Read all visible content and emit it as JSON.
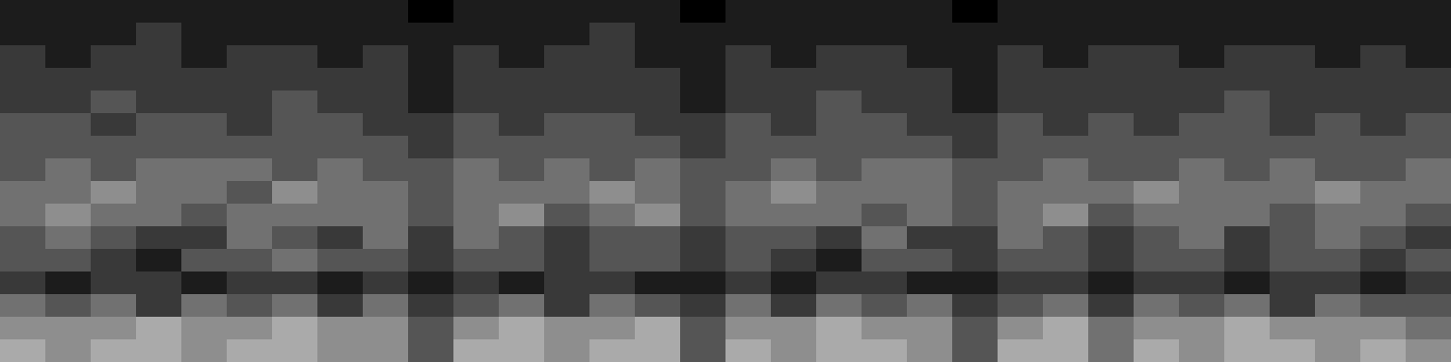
{
  "chart_data": {
    "type": "heatmap",
    "tick_labels": false,
    "colors": [
      "#000000",
      "#ffffff"
    ],
    "color_range": [
      0,
      9
    ],
    "cells": [
      [
        6,
        5,
        6,
        6,
        5,
        6,
        6,
        5,
        5,
        3,
        6,
        6,
        5,
        6,
        6,
        3,
        6,
        5,
        6,
        6,
        5,
        3,
        6,
        6,
        4,
        6,
        5,
        6,
        6,
        5,
        6,
        5
      ],
      [
        5,
        5,
        5,
        6,
        5,
        5,
        6,
        5,
        5,
        3,
        5,
        6,
        5,
        5,
        6,
        3,
        5,
        5,
        6,
        5,
        5,
        3,
        5,
        6,
        4,
        5,
        5,
        6,
        5,
        5,
        5,
        4
      ],
      [
        4,
        3,
        4,
        2,
        4,
        3,
        4,
        2,
        4,
        2,
        3,
        4,
        2,
        4,
        3,
        2,
        4,
        2,
        4,
        3,
        4,
        2,
        3,
        4,
        2,
        4,
        3,
        4,
        2,
        4,
        3,
        3
      ],
      [
        2,
        1,
        2,
        2,
        1,
        2,
        2,
        1,
        2,
        1,
        2,
        1,
        2,
        2,
        1,
        1,
        2,
        1,
        2,
        2,
        1,
        1,
        2,
        2,
        1,
        2,
        2,
        1,
        2,
        2,
        1,
        2
      ],
      [
        3,
        3,
        2,
        1,
        3,
        3,
        4,
        3,
        3,
        2,
        3,
        3,
        2,
        3,
        3,
        2,
        3,
        2,
        1,
        3,
        3,
        2,
        3,
        3,
        2,
        3,
        3,
        2,
        3,
        3,
        2,
        3
      ],
      [
        3,
        4,
        3,
        2,
        2,
        4,
        3,
        2,
        4,
        2,
        4,
        3,
        2,
        3,
        3,
        2,
        3,
        3,
        2,
        4,
        2,
        2,
        4,
        3,
        2,
        3,
        4,
        2,
        3,
        4,
        3,
        2
      ],
      [
        4,
        5,
        4,
        4,
        3,
        4,
        4,
        4,
        4,
        3,
        4,
        5,
        3,
        4,
        5,
        3,
        4,
        4,
        4,
        3,
        4,
        3,
        4,
        5,
        3,
        4,
        4,
        4,
        3,
        4,
        4,
        3
      ],
      [
        4,
        4,
        5,
        4,
        4,
        3,
        5,
        4,
        4,
        3,
        4,
        4,
        4,
        5,
        4,
        3,
        4,
        5,
        4,
        4,
        4,
        3,
        4,
        4,
        4,
        5,
        4,
        4,
        4,
        5,
        4,
        4
      ],
      [
        3,
        4,
        3,
        4,
        4,
        4,
        3,
        4,
        3,
        3,
        4,
        3,
        4,
        3,
        4,
        3,
        3,
        4,
        3,
        4,
        4,
        3,
        3,
        4,
        3,
        3,
        4,
        3,
        4,
        3,
        3,
        4
      ],
      [
        3,
        3,
        3,
        3,
        3,
        3,
        3,
        3,
        3,
        2,
        3,
        3,
        3,
        3,
        3,
        2,
        3,
        3,
        3,
        3,
        3,
        2,
        3,
        3,
        3,
        3,
        3,
        3,
        3,
        3,
        3,
        3
      ],
      [
        3,
        3,
        2,
        3,
        3,
        2,
        3,
        3,
        2,
        2,
        3,
        2,
        3,
        3,
        2,
        2,
        3,
        2,
        3,
        3,
        2,
        2,
        3,
        2,
        3,
        2,
        3,
        3,
        2,
        3,
        2,
        3
      ],
      [
        2,
        2,
        3,
        2,
        2,
        2,
        3,
        2,
        2,
        1,
        2,
        2,
        2,
        2,
        2,
        1,
        2,
        2,
        3,
        2,
        2,
        1,
        2,
        2,
        2,
        2,
        2,
        3,
        2,
        2,
        2,
        2
      ],
      [
        2,
        2,
        2,
        2,
        2,
        2,
        2,
        2,
        2,
        1,
        2,
        2,
        2,
        2,
        2,
        1,
        2,
        2,
        2,
        2,
        2,
        1,
        2,
        2,
        2,
        2,
        2,
        2,
        2,
        2,
        2,
        2
      ],
      [
        2,
        1,
        2,
        2,
        1,
        2,
        2,
        1,
        2,
        1,
        2,
        1,
        2,
        2,
        1,
        1,
        2,
        1,
        2,
        2,
        1,
        1,
        2,
        1,
        2,
        2,
        1,
        2,
        2,
        1,
        2,
        1
      ],
      [
        1,
        1,
        1,
        2,
        1,
        1,
        1,
        1,
        1,
        1,
        1,
        1,
        1,
        2,
        1,
        1,
        1,
        1,
        1,
        1,
        1,
        1,
        1,
        1,
        1,
        1,
        1,
        1,
        1,
        1,
        1,
        1
      ],
      [
        1,
        1,
        1,
        1,
        1,
        1,
        1,
        1,
        1,
        0,
        1,
        1,
        1,
        1,
        1,
        0,
        1,
        1,
        1,
        1,
        1,
        0,
        1,
        1,
        1,
        1,
        1,
        1,
        1,
        1,
        1,
        1
      ]
    ]
  }
}
